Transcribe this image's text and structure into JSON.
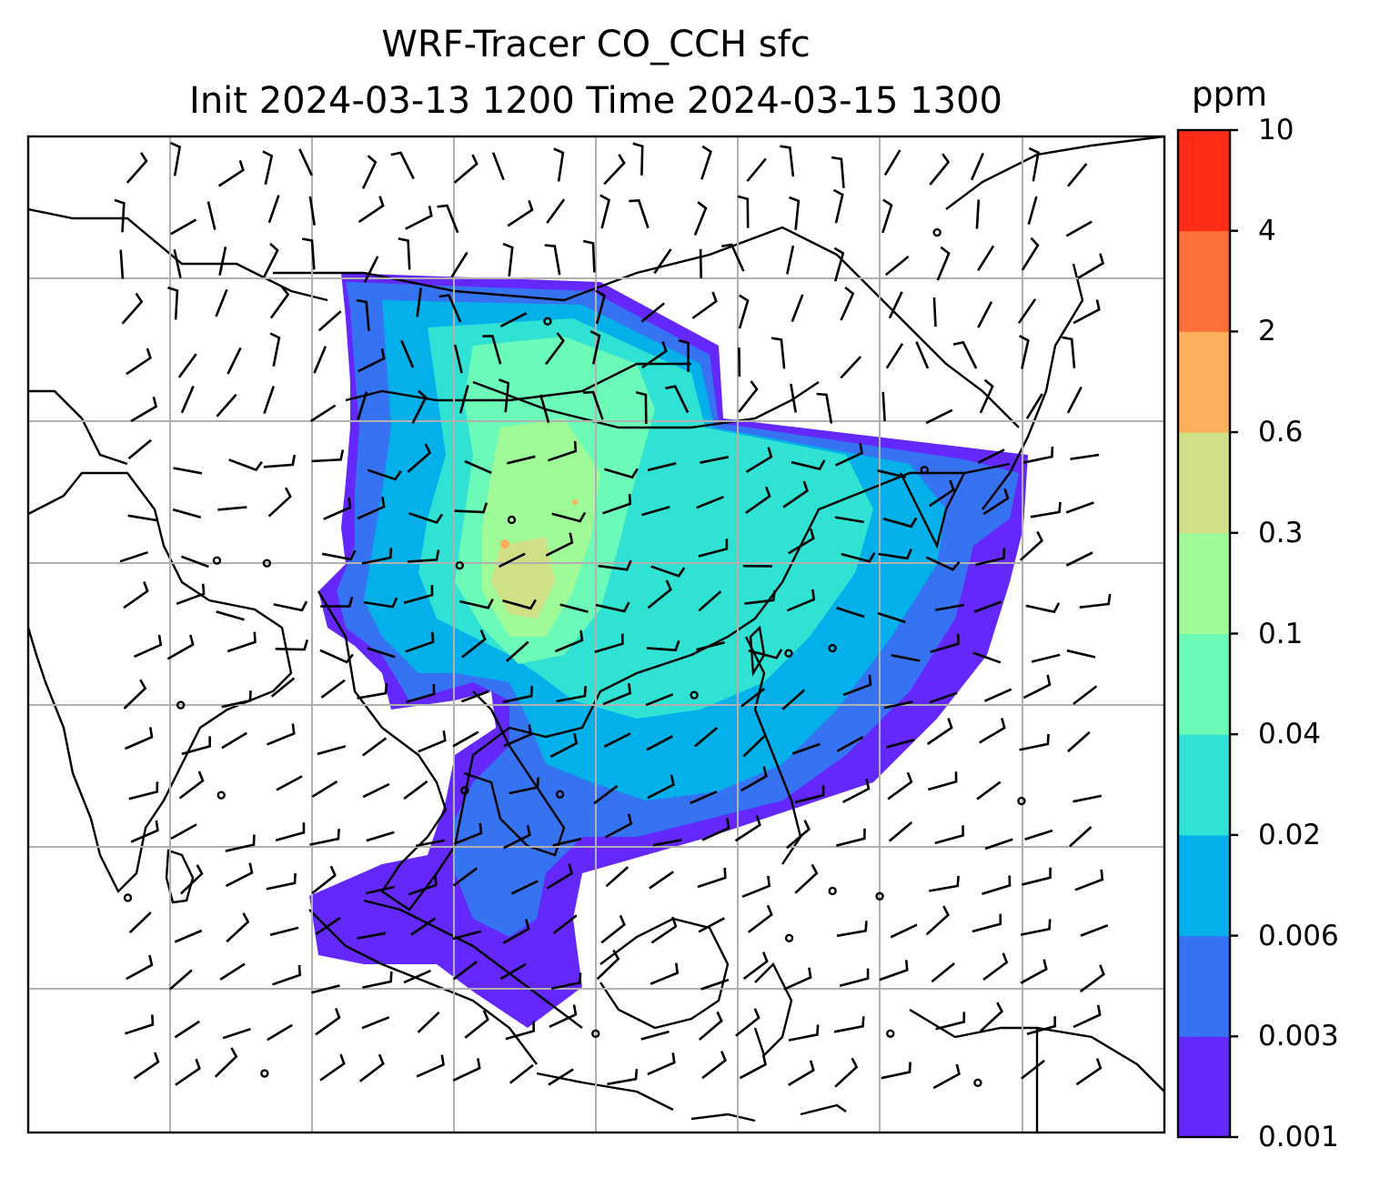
{
  "title": {
    "line1": "WRF-Tracer CO_CCH sfc",
    "line2": "Init 2024-03-13 1200 Time 2024-03-15 1300"
  },
  "colorbar": {
    "unit": "ppm",
    "levels": [
      "0.001",
      "0.003",
      "0.006",
      "0.02",
      "0.04",
      "0.1",
      "0.3",
      "0.6",
      "2",
      "4",
      "10"
    ],
    "colors": [
      "#6528fc",
      "#3573f3",
      "#03b0ea",
      "#2fe2d3",
      "#6cfab9",
      "#9ffa98",
      "#cfe086",
      "#fcb05e",
      "#fd6f39",
      "#fe2c17"
    ]
  },
  "map": {
    "field": "CO_CCH surface tracer concentration",
    "gridlines": true,
    "wind_barbs": true,
    "coastline_color": "#000000"
  }
}
